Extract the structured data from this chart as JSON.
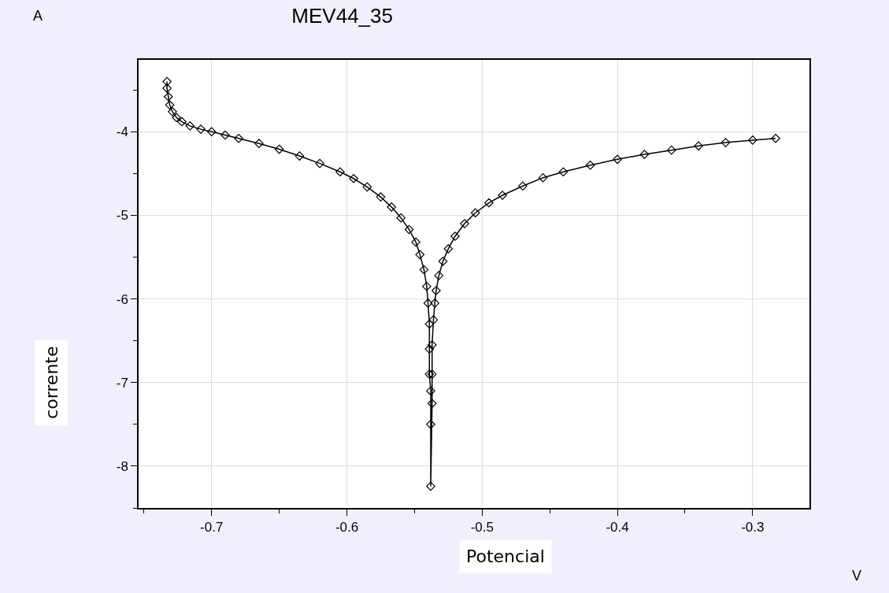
{
  "chart_data": {
    "type": "line",
    "title": "MEV44_35",
    "xlabel": "Potencial",
    "ylabel": "corrente",
    "annotations": [
      "A",
      "V"
    ],
    "x": [
      -0.733,
      -0.733,
      -0.732,
      -0.731,
      -0.729,
      -0.726,
      -0.722,
      -0.716,
      -0.708,
      -0.7,
      -0.69,
      -0.68,
      -0.665,
      -0.65,
      -0.635,
      -0.62,
      -0.605,
      -0.595,
      -0.585,
      -0.575,
      -0.567,
      -0.56,
      -0.554,
      -0.549,
      -0.546,
      -0.543,
      -0.541,
      -0.54,
      -0.539,
      -0.539,
      -0.539,
      -0.538,
      -0.538,
      -0.538,
      -0.537,
      -0.537,
      -0.537,
      -0.536,
      -0.535,
      -0.534,
      -0.532,
      -0.529,
      -0.525,
      -0.52,
      -0.513,
      -0.505,
      -0.495,
      -0.485,
      -0.47,
      -0.455,
      -0.44,
      -0.42,
      -0.4,
      -0.38,
      -0.36,
      -0.34,
      -0.32,
      -0.3,
      -0.283
    ],
    "series": [
      {
        "color": "#000000",
        "values": [
          -3.4,
          -3.48,
          -3.58,
          -3.68,
          -3.76,
          -3.83,
          -3.88,
          -3.93,
          -3.97,
          -4.0,
          -4.04,
          -4.08,
          -4.14,
          -4.21,
          -4.29,
          -4.38,
          -4.48,
          -4.56,
          -4.66,
          -4.78,
          -4.9,
          -5.03,
          -5.17,
          -5.32,
          -5.47,
          -5.65,
          -5.85,
          -6.05,
          -6.3,
          -6.6,
          -6.9,
          -7.1,
          -7.5,
          -8.24,
          -7.25,
          -6.9,
          -6.55,
          -6.25,
          -6.05,
          -5.9,
          -5.72,
          -5.55,
          -5.4,
          -5.25,
          -5.1,
          -4.97,
          -4.85,
          -4.76,
          -4.65,
          -4.55,
          -4.48,
          -4.4,
          -4.33,
          -4.27,
          -4.22,
          -4.17,
          -4.13,
          -4.1,
          -4.08
        ]
      }
    ],
    "xlim": [
      -0.754,
      -0.258
    ],
    "xticks": [
      {
        "value": -0.75,
        "label": null
      },
      -0.7,
      {
        "value": -0.65,
        "label": null
      },
      -0.6,
      {
        "value": -0.55,
        "label": null
      },
      -0.5,
      {
        "value": -0.45,
        "label": null
      },
      -0.4,
      {
        "value": -0.35,
        "label": null
      },
      -0.3
    ],
    "ylim": [
      -8.5,
      -3.14
    ],
    "yticks": [
      {
        "value": -8.5,
        "label": null
      },
      -8,
      {
        "value": -7.5,
        "label": null
      },
      -7,
      {
        "value": -6.5,
        "label": null
      },
      -6,
      {
        "value": -5.5,
        "label": null
      },
      -5,
      {
        "value": -4.5,
        "label": null
      },
      -4,
      {
        "value": -3.5,
        "label": null
      }
    ],
    "grid": true,
    "marker": "diamond",
    "line_style": "solid"
  }
}
